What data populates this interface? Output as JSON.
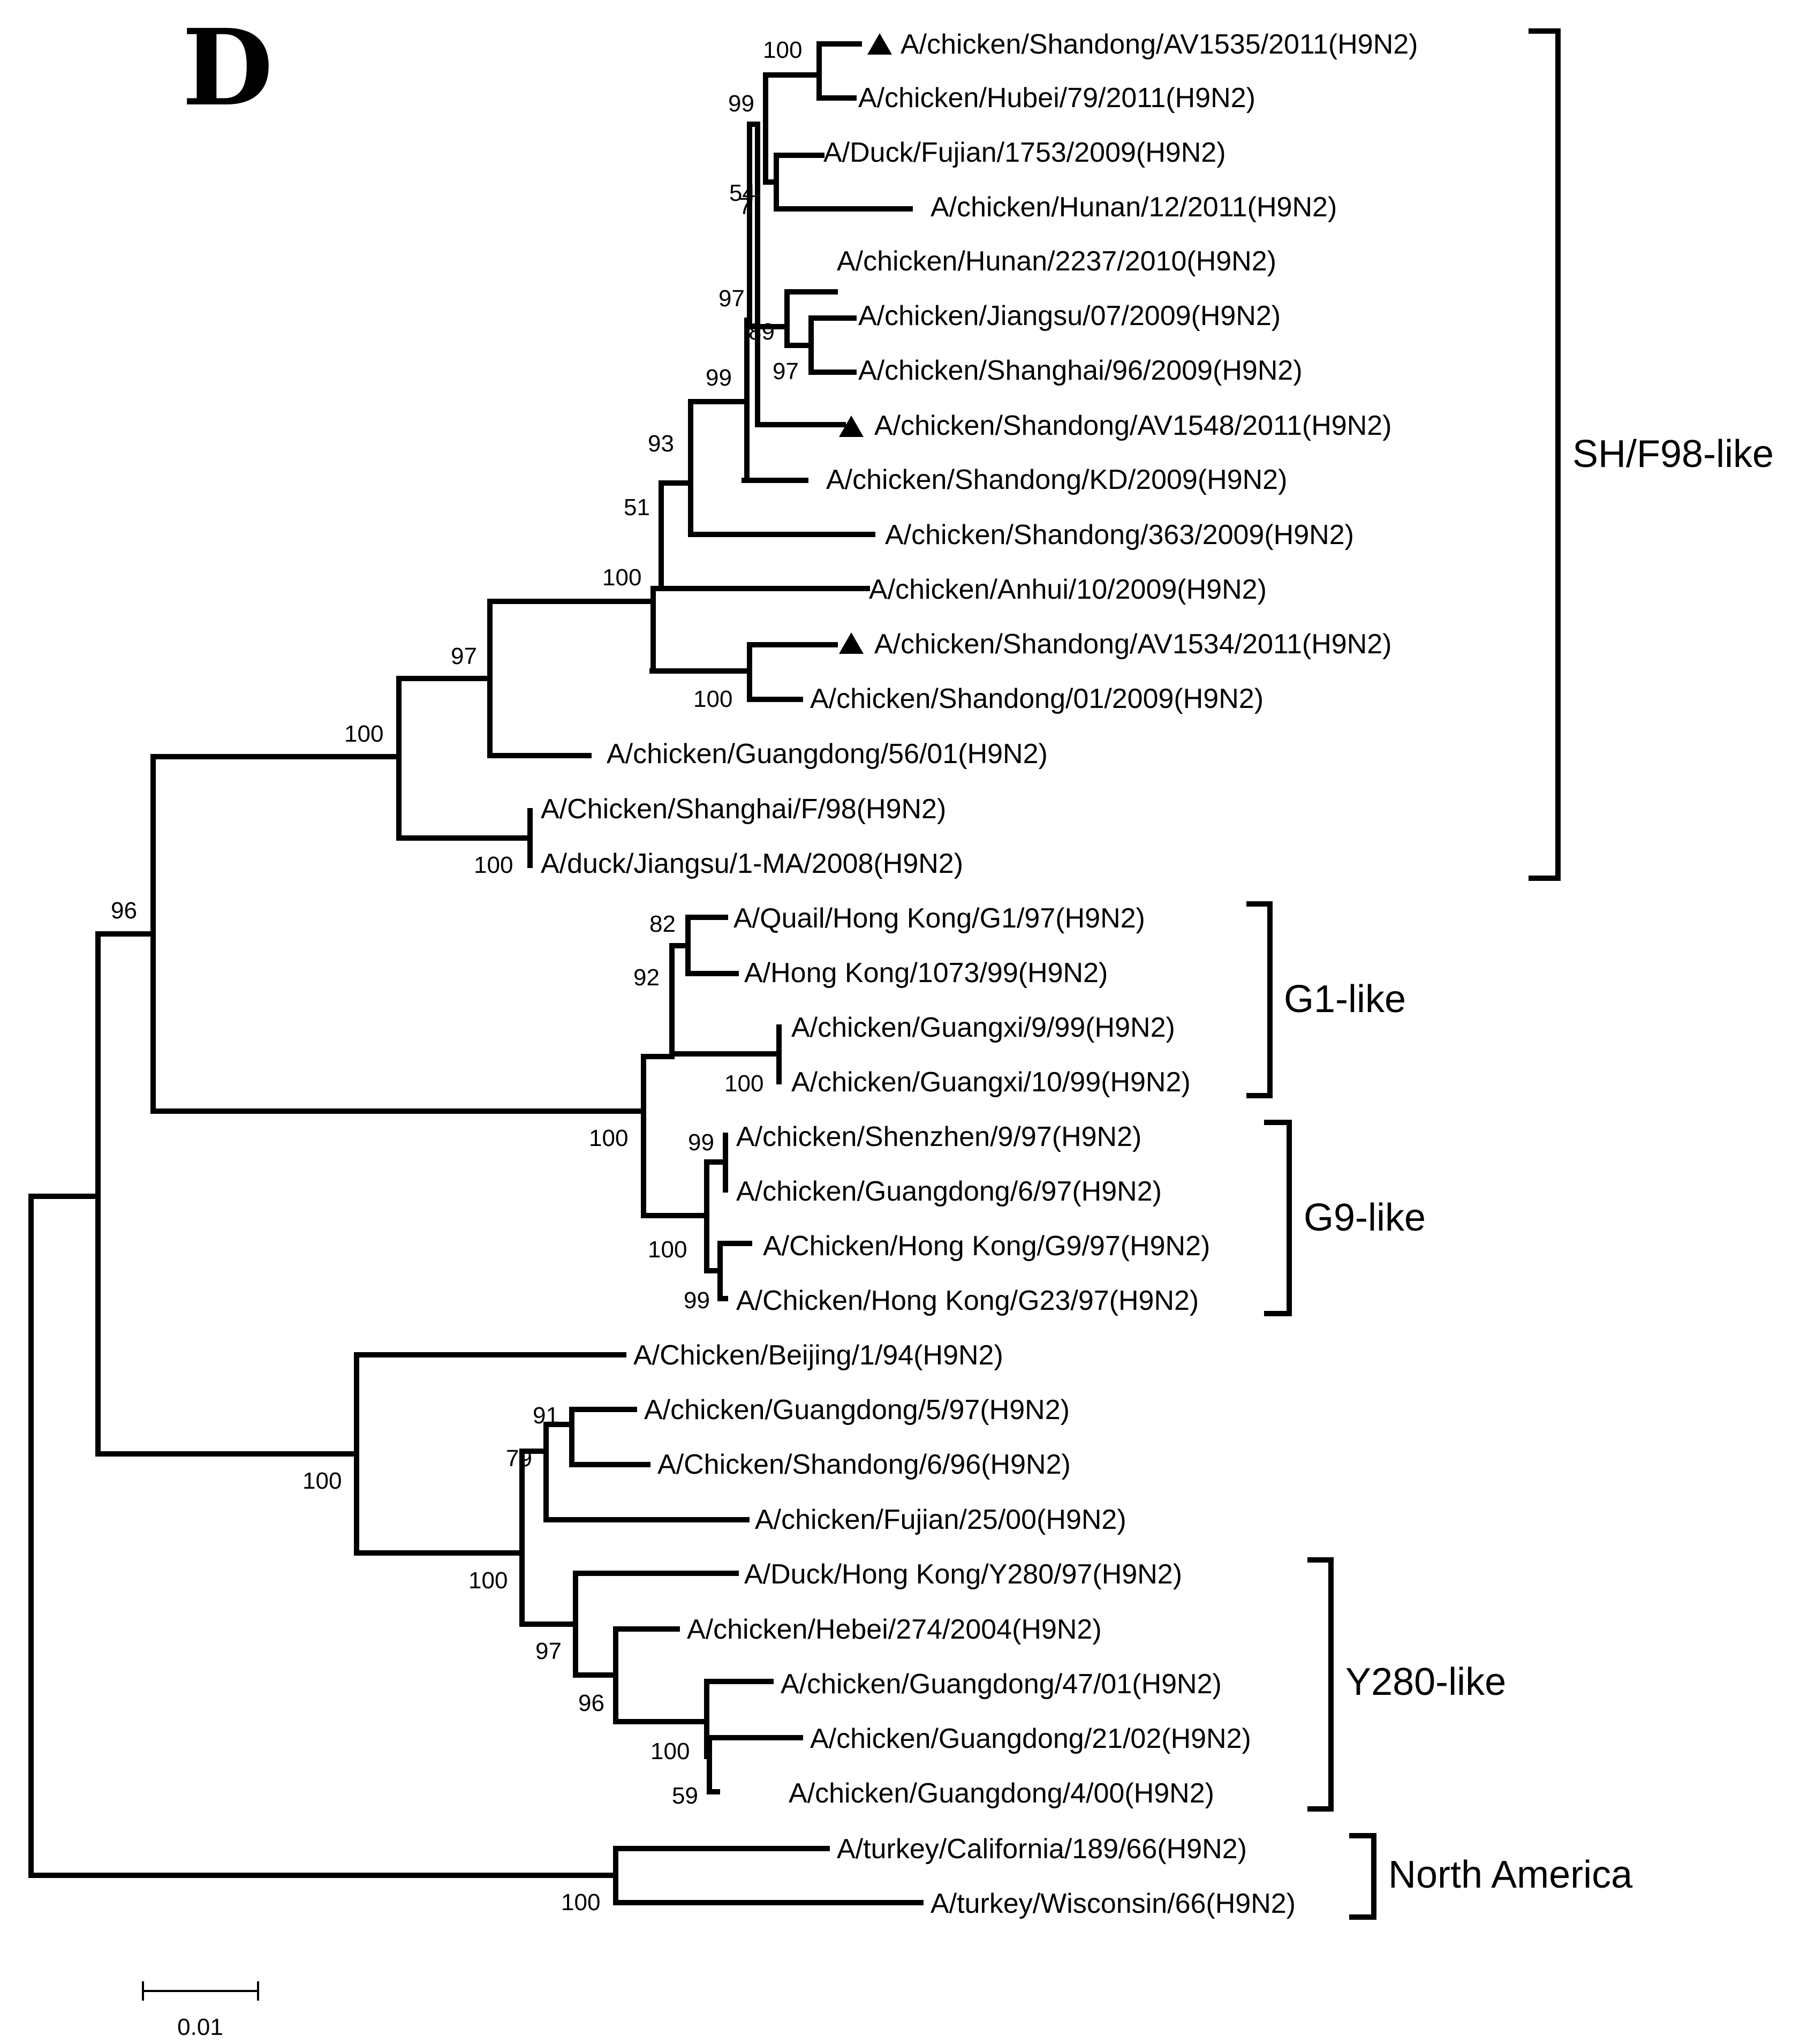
{
  "panel_label": "D",
  "leaves": [
    {
      "id": "L1",
      "label": "A/chicken/Shandong/AV1535/2011(H9N2)",
      "marker": "triangle-icon"
    },
    {
      "id": "L2",
      "label": "A/chicken/Hubei/79/2011(H9N2)"
    },
    {
      "id": "L3",
      "label": "A/Duck/Fujian/1753/2009(H9N2)"
    },
    {
      "id": "L4",
      "label": "A/chicken/Hunan/12/2011(H9N2)"
    },
    {
      "id": "L5",
      "label": "A/chicken/Hunan/2237/2010(H9N2)"
    },
    {
      "id": "L6",
      "label": "A/chicken/Jiangsu/07/2009(H9N2)"
    },
    {
      "id": "L7",
      "label": "A/chicken/Shanghai/96/2009(H9N2)"
    },
    {
      "id": "L8",
      "label": "A/chicken/Shandong/AV1548/2011(H9N2)",
      "marker": "triangle-icon"
    },
    {
      "id": "L9",
      "label": "A/chicken/Shandong/KD/2009(H9N2)"
    },
    {
      "id": "L10",
      "label": "A/chicken/Shandong/363/2009(H9N2)"
    },
    {
      "id": "L11",
      "label": "A/chicken/Anhui/10/2009(H9N2)"
    },
    {
      "id": "L12",
      "label": "A/chicken/Shandong/AV1534/2011(H9N2)",
      "marker": "triangle-icon"
    },
    {
      "id": "L13",
      "label": "A/chicken/Shandong/01/2009(H9N2)"
    },
    {
      "id": "L14",
      "label": "A/chicken/Guangdong/56/01(H9N2)"
    },
    {
      "id": "L15",
      "label": "A/Chicken/Shanghai/F/98(H9N2)"
    },
    {
      "id": "L16",
      "label": "A/duck/Jiangsu/1-MA/2008(H9N2)"
    },
    {
      "id": "L17",
      "label": "A/Quail/Hong Kong/G1/97(H9N2)"
    },
    {
      "id": "L18",
      "label": "A/Hong Kong/1073/99(H9N2)"
    },
    {
      "id": "L19",
      "label": "A/chicken/Guangxi/9/99(H9N2)"
    },
    {
      "id": "L20",
      "label": "A/chicken/Guangxi/10/99(H9N2)"
    },
    {
      "id": "L21",
      "label": "A/chicken/Shenzhen/9/97(H9N2)"
    },
    {
      "id": "L22",
      "label": "A/chicken/Guangdong/6/97(H9N2)"
    },
    {
      "id": "L23",
      "label": "A/Chicken/Hong Kong/G9/97(H9N2)"
    },
    {
      "id": "L24",
      "label": "A/Chicken/Hong Kong/G23/97(H9N2)"
    },
    {
      "id": "L25",
      "label": "A/Chicken/Beijing/1/94(H9N2)"
    },
    {
      "id": "L26",
      "label": "A/chicken/Guangdong/5/97(H9N2)"
    },
    {
      "id": "L27",
      "label": "A/Chicken/Shandong/6/96(H9N2)"
    },
    {
      "id": "L28",
      "label": "A/chicken/Fujian/25/00(H9N2)"
    },
    {
      "id": "L29",
      "label": "A/Duck/Hong Kong/Y280/97(H9N2)"
    },
    {
      "id": "L30",
      "label": "A/chicken/Hebei/274/2004(H9N2)"
    },
    {
      "id": "L31",
      "label": "A/chicken/Guangdong/47/01(H9N2)"
    },
    {
      "id": "L32",
      "label": "A/chicken/Guangdong/21/02(H9N2)"
    },
    {
      "id": "L33",
      "label": "A/chicken/Guangdong/4/00(H9N2)"
    },
    {
      "id": "L34",
      "label": "A/turkey/California/189/66(H9N2)"
    },
    {
      "id": "L35",
      "label": "A/turkey/Wisconsin/66(H9N2)"
    }
  ],
  "bootstrap_values": [
    {
      "node": "n_1_2",
      "value": "100"
    },
    {
      "node": "n_1_4",
      "value": "99"
    },
    {
      "node": "n_3_4",
      "value": "54"
    },
    {
      "node": "n_3_4b",
      "value": "7"
    },
    {
      "node": "n_1_9",
      "value": "97"
    },
    {
      "node": "n_5_7",
      "value": "89"
    },
    {
      "node": "n_6_7",
      "value": "97"
    },
    {
      "node": "n_1_10",
      "value": "99"
    },
    {
      "node": "n_1_11",
      "value": "93"
    },
    {
      "node": "n_1_11b",
      "value": "51"
    },
    {
      "node": "n_1_13",
      "value": "100"
    },
    {
      "node": "n_12_13",
      "value": "100"
    },
    {
      "node": "n_1_14",
      "value": "97"
    },
    {
      "node": "n_1_16",
      "value": "100"
    },
    {
      "node": "n_15_16",
      "value": "100"
    },
    {
      "node": "n_17_18",
      "value": "82"
    },
    {
      "node": "n_17_20",
      "value": "92"
    },
    {
      "node": "n_19_20",
      "value": "100"
    },
    {
      "node": "n_17_24",
      "value": "100"
    },
    {
      "node": "n_21_22",
      "value": "99"
    },
    {
      "node": "n_21_24",
      "value": "100"
    },
    {
      "node": "n_23_24",
      "value": "99"
    },
    {
      "node": "n_1_24",
      "value": "96"
    },
    {
      "node": "n_25_33",
      "value": "100"
    },
    {
      "node": "n_26_27",
      "value": "91"
    },
    {
      "node": "n_26_28",
      "value": "79"
    },
    {
      "node": "n_26_33",
      "value": "100"
    },
    {
      "node": "n_29_33",
      "value": "97"
    },
    {
      "node": "n_30_33",
      "value": "96"
    },
    {
      "node": "n_31_33",
      "value": "100"
    },
    {
      "node": "n_32_33",
      "value": "59"
    },
    {
      "node": "n_34_35",
      "value": "100"
    }
  ],
  "clades": [
    {
      "id": "sh_f98",
      "label": "SH/F98-like"
    },
    {
      "id": "g1",
      "label": "G1-like"
    },
    {
      "id": "g9",
      "label": "G9-like"
    },
    {
      "id": "y280",
      "label": "Y280-like"
    },
    {
      "id": "north_america",
      "label": "North America"
    }
  ],
  "scale_bar": {
    "label": "0.01",
    "value": 0.01
  }
}
